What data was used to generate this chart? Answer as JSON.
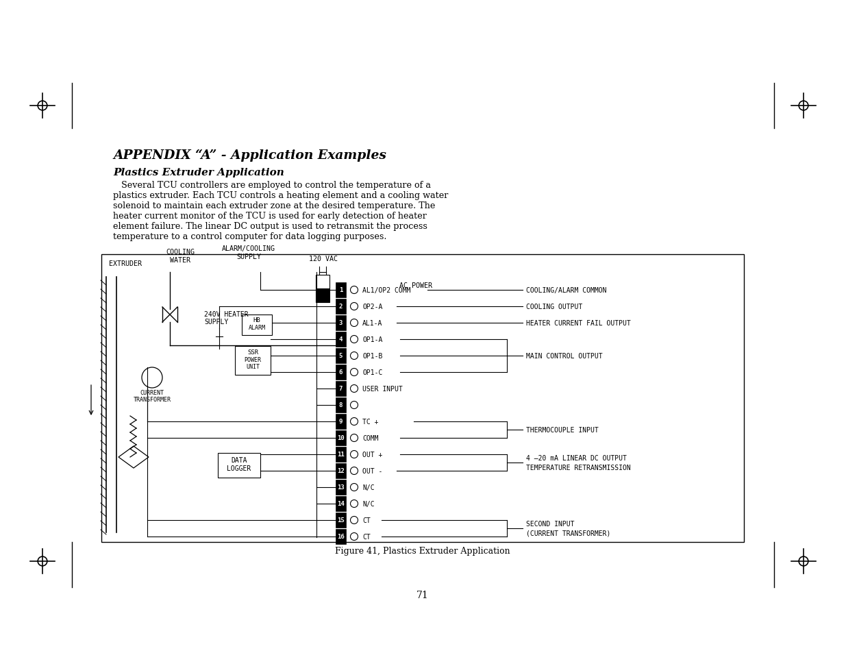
{
  "bg_color": "#ffffff",
  "title": "APPENDIX “A” - Application Examples",
  "subtitle": "Plastics Extruder Application",
  "body_text": "   Several TCU controllers are employed to control the temperature of a\nplastics extruder. Each TCU controls a heating element and a cooling water\nsolenoid to maintain each extruder zone at the desired temperature. The\nheater current monitor of the TCU is used for early detection of heater\nelement failure. The linear DC output is used to retransmit the process\ntemperature to a control computer for data logging purposes.",
  "figure_caption": "Figure 41, Plastics Extruder Application",
  "page_number": "71",
  "terminal_labels": [
    "AL1/OP2 COMM",
    "OP2-A",
    "AL1-A",
    "OP1-A",
    "OP1-B",
    "OP1-C",
    "USER INPUT",
    "",
    "TC +",
    "COMM",
    "OUT +",
    "OUT -",
    "N/C",
    "N/C",
    "CT",
    "CT"
  ]
}
